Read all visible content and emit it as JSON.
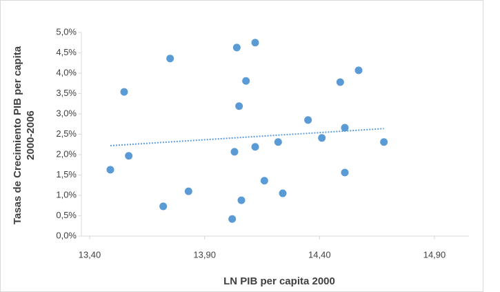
{
  "chart_data": {
    "type": "scatter",
    "x_label": "LN PIB per capita 2000",
    "y_label": "Tasas de Crecimiento PIB per capita 2000-2006",
    "x": [
      13.49,
      13.55,
      13.57,
      13.72,
      13.75,
      13.83,
      14.02,
      14.03,
      14.04,
      14.05,
      14.06,
      14.08,
      14.12,
      14.12,
      14.16,
      14.22,
      14.24,
      14.35,
      14.41,
      14.49,
      14.51,
      14.51,
      14.57,
      14.68
    ],
    "values": [
      1.63,
      3.54,
      1.97,
      0.73,
      4.36,
      1.1,
      0.42,
      2.07,
      4.63,
      3.19,
      0.88,
      3.81,
      2.19,
      4.75,
      1.36,
      2.31,
      1.05,
      2.85,
      2.41,
      3.78,
      1.56,
      2.66,
      4.07,
      2.31
    ],
    "color": "#5b9bd5",
    "trendline": {
      "x": [
        13.49,
        14.68
      ],
      "values": [
        2.22,
        2.64
      ]
    },
    "xlim": [
      13.4,
      15.05
    ],
    "xticks": [
      {
        "value": 13.4,
        "label": "13,40"
      },
      {
        "value": 13.9,
        "label": "13,90"
      },
      {
        "value": 14.4,
        "label": "14,40"
      },
      {
        "value": 14.9,
        "label": "14,90"
      }
    ],
    "ylim": [
      0,
      5
    ],
    "yticks": [
      {
        "value": 0,
        "label": "0,0%"
      },
      {
        "value": 0.5,
        "label": "0,5%"
      },
      {
        "value": 1,
        "label": "1,0%"
      },
      {
        "value": 1.5,
        "label": "1,5%"
      },
      {
        "value": 2,
        "label": "2,0%"
      },
      {
        "value": 2.5,
        "label": "2,5%"
      },
      {
        "value": 3,
        "label": "3,0%"
      },
      {
        "value": 3.5,
        "label": "3,5%"
      },
      {
        "value": 4,
        "label": "4,0%"
      },
      {
        "value": 4.5,
        "label": "4,5%"
      },
      {
        "value": 5,
        "label": "5,0%"
      }
    ]
  }
}
